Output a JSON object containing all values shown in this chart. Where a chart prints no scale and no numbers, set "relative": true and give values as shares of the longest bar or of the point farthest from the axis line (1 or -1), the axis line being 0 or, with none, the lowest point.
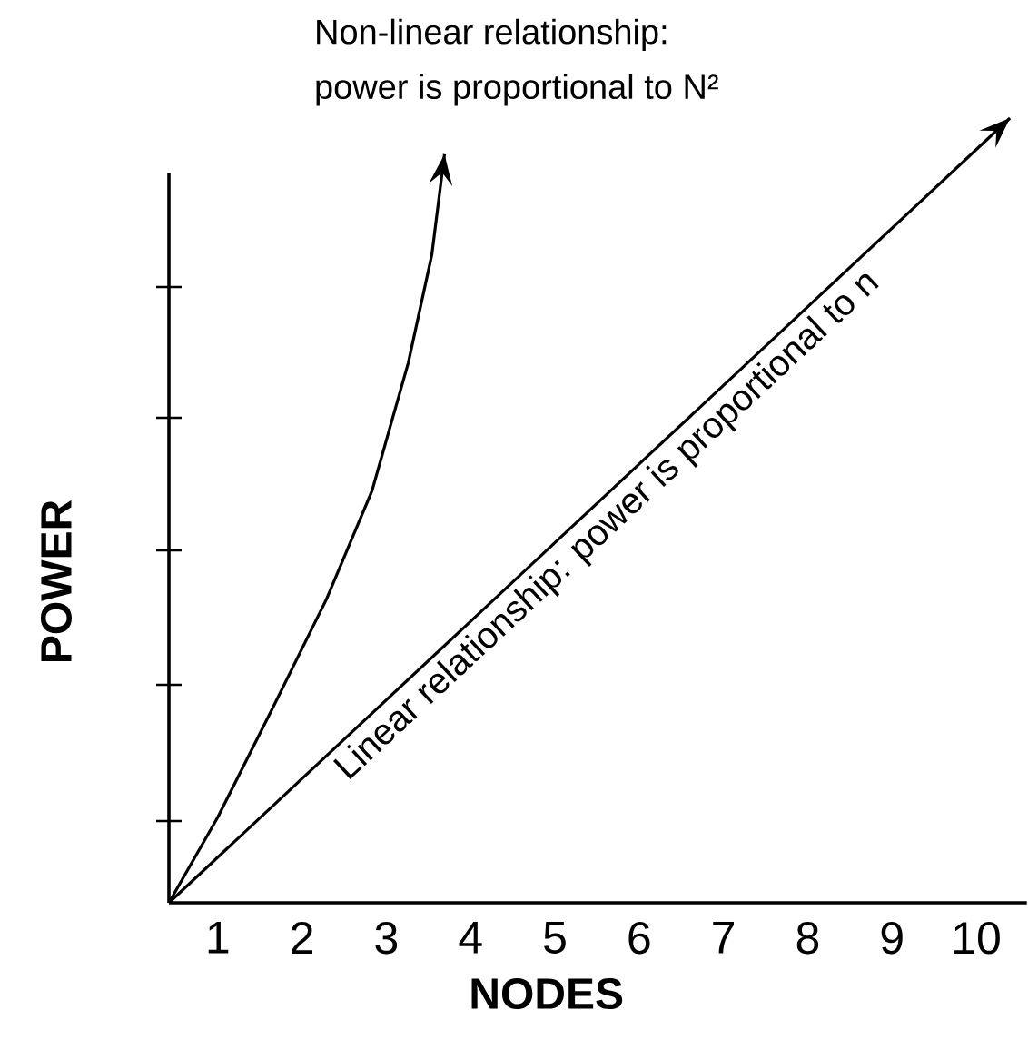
{
  "chart_data": {
    "type": "line",
    "relative": true,
    "xlabel": "NODES",
    "ylabel": "POWER",
    "xlim": [
      0.42,
      10.6
    ],
    "xticks": [
      1,
      2,
      3,
      4,
      5,
      6,
      7,
      8,
      9,
      10
    ],
    "tick_labels": "x",
    "color": "#000000",
    "line_style": "solid",
    "series": [
      {
        "x": [
          0.42,
          10.4
        ],
        "values": [
          0,
          1
        ]
      },
      {
        "x": [
          0.42,
          1.0,
          1.65,
          2.29,
          2.83,
          3.26,
          3.54,
          3.69
        ],
        "values": [
          0,
          0.109,
          0.248,
          0.387,
          0.525,
          0.688,
          0.826,
          0.954
        ]
      }
    ],
    "annotations": [
      "Non-linear relationship:",
      "power is proportional to N²",
      "Linear relationship: power is proportional to n"
    ]
  }
}
